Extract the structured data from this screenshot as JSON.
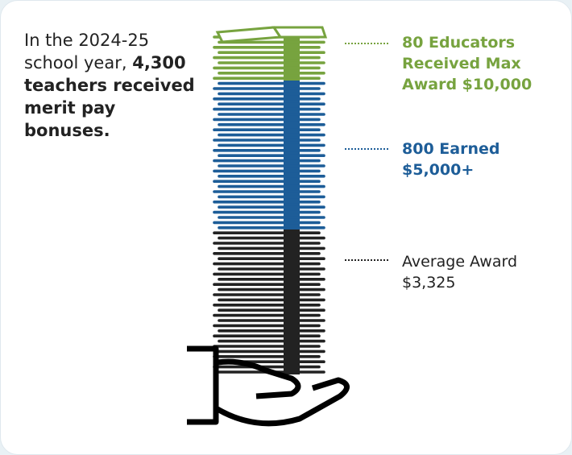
{
  "intro": {
    "text": "In the 2024-25 school year,",
    "highlight": "4,300 teachers received merit pay bonuses."
  },
  "callouts": [
    {
      "label": "80 Educators Received Max Award $10,000",
      "color": "#77a33f"
    },
    {
      "label": "800 Earned $5,000+",
      "color": "#1d5d98"
    },
    {
      "label": "Average Award $3,325",
      "color": "#222222"
    }
  ]
}
